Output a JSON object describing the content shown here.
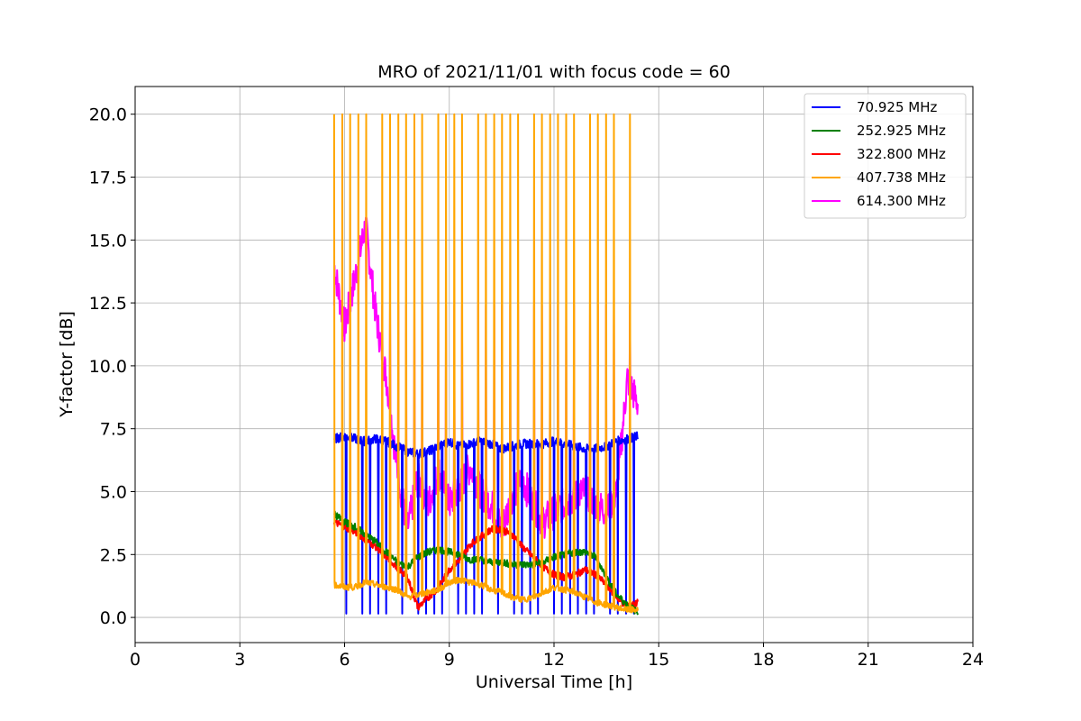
{
  "chart_data": {
    "type": "line",
    "title": "MRO of 2021/11/01 with focus code = 60",
    "xlabel": "Universal Time [h]",
    "ylabel": "Y-factor [dB]",
    "xlim": [
      0,
      24
    ],
    "ylim": [
      -1.0,
      21.1
    ],
    "xticks": [
      0,
      3,
      6,
      9,
      12,
      15,
      18,
      21,
      24
    ],
    "xtick_labels": [
      "0",
      "3",
      "6",
      "9",
      "12",
      "15",
      "18",
      "21",
      "24"
    ],
    "yticks": [
      0.0,
      2.5,
      5.0,
      7.5,
      10.0,
      12.5,
      15.0,
      17.5,
      20.0
    ],
    "ytick_labels": [
      "0.0",
      "2.5",
      "5.0",
      "7.5",
      "10.0",
      "12.5",
      "15.0",
      "17.5",
      "20.0"
    ],
    "grid": true,
    "legend_position": "top-right",
    "x": [
      5.7,
      6.0,
      6.3,
      6.6,
      6.9,
      7.2,
      7.5,
      7.8,
      8.1,
      8.4,
      8.7,
      9.0,
      9.3,
      9.6,
      9.9,
      10.2,
      10.5,
      10.8,
      11.1,
      11.4,
      11.7,
      12.0,
      12.3,
      12.6,
      12.9,
      13.2,
      13.5,
      13.8,
      14.1,
      14.4
    ],
    "series": [
      {
        "name": " 70.925 MHz",
        "color": "#0000ff",
        "values": [
          7.1,
          7.2,
          7.1,
          7.0,
          7.1,
          7.0,
          6.8,
          6.6,
          6.5,
          6.6,
          6.8,
          7.0,
          6.8,
          6.9,
          7.0,
          6.9,
          6.7,
          6.8,
          6.9,
          6.9,
          6.9,
          7.0,
          6.9,
          6.8,
          6.7,
          6.7,
          6.8,
          7.0,
          7.1,
          7.2
        ],
        "spike_low": 0.15
      },
      {
        "name": "252.925 MHz",
        "color": "#008000",
        "values": [
          4.1,
          3.8,
          3.6,
          3.3,
          3.0,
          2.6,
          2.2,
          2.0,
          2.4,
          2.6,
          2.7,
          2.6,
          2.5,
          2.3,
          2.3,
          2.2,
          2.2,
          2.1,
          2.1,
          2.1,
          2.2,
          2.4,
          2.5,
          2.6,
          2.6,
          2.4,
          1.6,
          0.9,
          0.5,
          0.2
        ]
      },
      {
        "name": "322.800 MHz",
        "color": "#ff0000",
        "values": [
          3.8,
          3.6,
          3.4,
          3.1,
          2.8,
          2.4,
          2.0,
          1.6,
          0.4,
          0.8,
          1.2,
          1.9,
          2.3,
          2.9,
          3.2,
          3.5,
          3.5,
          3.3,
          2.8,
          2.4,
          2.0,
          1.7,
          1.6,
          1.7,
          1.9,
          1.7,
          1.3,
          0.8,
          0.4,
          0.6
        ]
      },
      {
        "name": "407.738 MHz",
        "color": "#ffa500",
        "values": [
          1.3,
          1.2,
          1.2,
          1.4,
          1.3,
          1.2,
          1.1,
          0.8,
          0.9,
          1.0,
          1.1,
          1.4,
          1.5,
          1.4,
          1.3,
          1.1,
          1.0,
          0.8,
          0.7,
          0.8,
          1.0,
          1.2,
          1.1,
          1.0,
          0.8,
          0.6,
          0.5,
          0.4,
          0.3,
          0.3
        ],
        "spike_high": 20.0
      },
      {
        "name": "614.300 MHz",
        "color": "#ff00ff",
        "values": [
          14.0,
          11.5,
          13.5,
          15.6,
          12.0,
          9.5,
          6.0,
          3.5,
          5.5,
          4.5,
          5.8,
          4.5,
          5.2,
          6.0,
          5.0,
          4.5,
          3.5,
          4.8,
          5.5,
          4.5,
          3.8,
          4.2,
          4.5,
          4.8,
          5.0,
          4.5,
          4.2,
          5.0,
          9.5,
          8.5
        ],
        "spike_high": 12.4
      }
    ]
  }
}
